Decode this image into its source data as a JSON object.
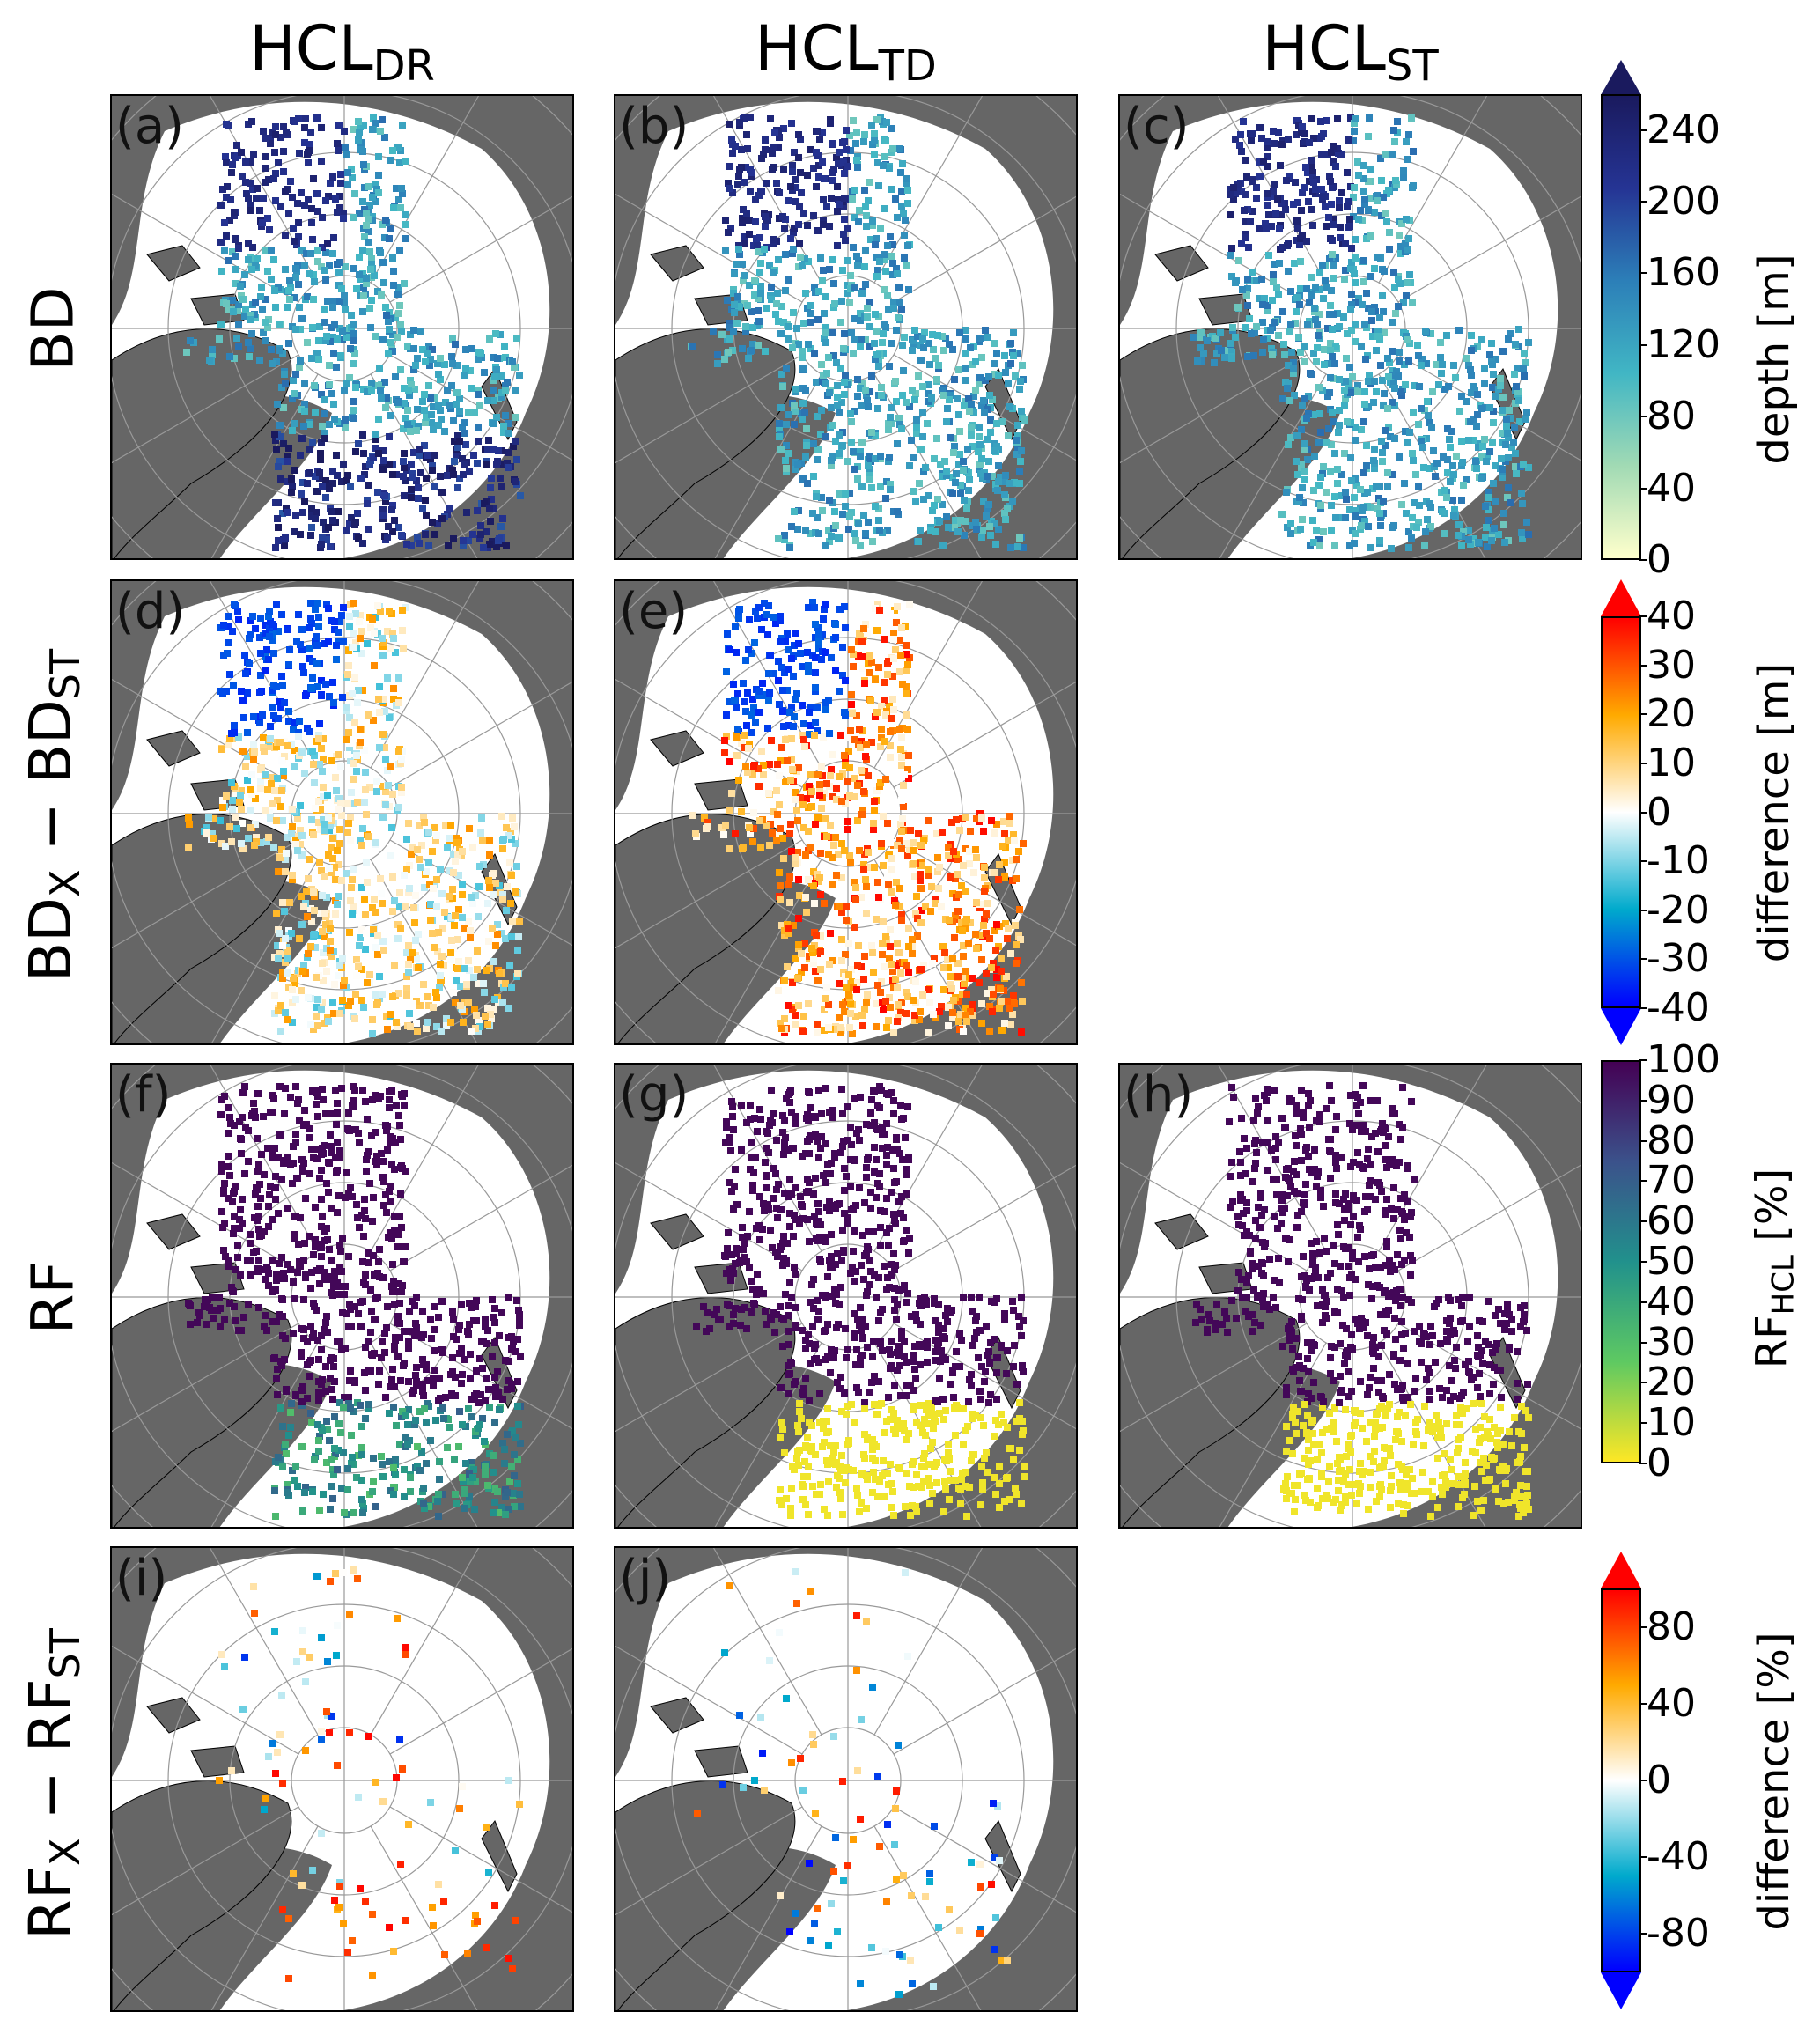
{
  "columns": [
    {
      "main": "HCL",
      "sub": "DR"
    },
    {
      "main": "HCL",
      "sub": "TD"
    },
    {
      "main": "HCL",
      "sub": "ST"
    }
  ],
  "rows": [
    {
      "label": "BD"
    },
    {
      "pre": "BD",
      "pre_sub": "X",
      "mid": " − BD",
      "mid_sub": "ST"
    },
    {
      "label": "RF"
    },
    {
      "pre": "RF",
      "pre_sub": "X",
      "mid": " − RF",
      "mid_sub": "ST"
    }
  ],
  "panels": [
    "(a)",
    "(b)",
    "(c)",
    "(d)",
    "(e)",
    "(f)",
    "(g)",
    "(h)",
    "(i)",
    "(j)"
  ],
  "colorbars": [
    {
      "label": "depth [m]",
      "ticks": [
        "240",
        "200",
        "160",
        "120",
        "80",
        "40",
        "0"
      ],
      "range": [
        0,
        260
      ],
      "extend": "max",
      "colors": [
        "#ffffcc",
        "#a1dab4",
        "#41b6c4",
        "#2c7fb8",
        "#253494",
        "#1a1a5e"
      ]
    },
    {
      "label": "difference [m]",
      "ticks": [
        "40",
        "30",
        "20",
        "10",
        "0",
        "-10",
        "-20",
        "-30",
        "-40"
      ],
      "range": [
        -40,
        40
      ],
      "extend": "both",
      "colors": [
        "#0000ff",
        "#00aacc",
        "#ffffff",
        "#ffaa00",
        "#ff0000"
      ]
    },
    {
      "label_main": "RF",
      "label_sub": "HCL",
      "label_unit": "  [%]",
      "ticks": [
        "100",
        "90",
        "80",
        "70",
        "60",
        "50",
        "40",
        "30",
        "20",
        "10",
        "0"
      ],
      "range": [
        0,
        100
      ],
      "extend": "none",
      "colors": [
        "#fde725",
        "#5ec962",
        "#21918c",
        "#3b528b",
        "#440154"
      ]
    },
    {
      "label": "difference [%]",
      "ticks": [
        "80",
        "40",
        "0",
        "-40",
        "-80"
      ],
      "range": [
        -100,
        100
      ],
      "extend": "both",
      "colors": [
        "#0000ff",
        "#00aacc",
        "#ffffff",
        "#ffaa00",
        "#ff0000"
      ]
    }
  ]
}
